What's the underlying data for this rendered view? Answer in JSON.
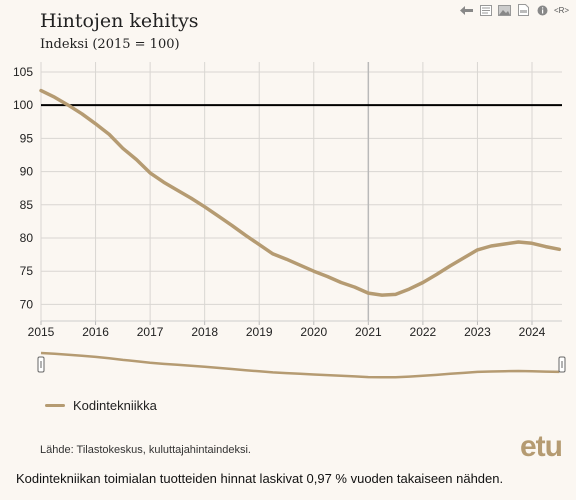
{
  "header": {
    "title": "Hintojen kehitys",
    "subtitle": "Indeksi (2015 = 100)"
  },
  "toolbar": {
    "icons": [
      "arrow-left-icon",
      "document-icon",
      "image-icon",
      "pdf-icon",
      "info-icon"
    ],
    "r_label": "<R>"
  },
  "legend": {
    "label": "Kodintekniikka",
    "color": "#b59b72"
  },
  "source": "Lähde: Tilastokeskus, kuluttajahintaindeksi.",
  "logo": "etu",
  "caption": "Kodintekniikan toimialan tuotteiden hinnat laskivat 0,97 % vuoden takaiseen nähden.",
  "colors": {
    "background": "#fbf7f2",
    "line": "#b59b72",
    "baseline": "#000000",
    "grid": "#d9d6d2"
  },
  "chart_data": {
    "type": "line",
    "title": "Hintojen kehitys",
    "subtitle": "Indeksi (2015 = 100)",
    "xlabel": "",
    "ylabel": "",
    "xlim": [
      2015,
      2024.55
    ],
    "ylim": [
      67.5,
      106.5
    ],
    "x_ticks": [
      "2015",
      "2016",
      "2017",
      "2018",
      "2019",
      "2020",
      "2021",
      "2022",
      "2023",
      "2024"
    ],
    "y_ticks": [
      70,
      75,
      80,
      85,
      90,
      95,
      100,
      105
    ],
    "reference_line": 100,
    "highlight_x": 2021,
    "grid": true,
    "legend_position": "bottom-left",
    "navigator": true,
    "series": [
      {
        "name": "Kodintekniikka",
        "x": [
          2015.0,
          2015.25,
          2015.5,
          2015.75,
          2016.0,
          2016.25,
          2016.5,
          2016.75,
          2017.0,
          2017.25,
          2017.5,
          2017.75,
          2018.0,
          2018.25,
          2018.5,
          2018.75,
          2019.0,
          2019.25,
          2019.5,
          2019.75,
          2020.0,
          2020.25,
          2020.5,
          2020.75,
          2021.0,
          2021.25,
          2021.5,
          2021.75,
          2022.0,
          2022.25,
          2022.5,
          2022.75,
          2023.0,
          2023.25,
          2023.5,
          2023.75,
          2024.0,
          2024.25,
          2024.5
        ],
        "y": [
          102.2,
          101.2,
          100.0,
          98.7,
          97.2,
          95.6,
          93.5,
          91.8,
          89.8,
          88.4,
          87.2,
          86.0,
          84.7,
          83.3,
          81.9,
          80.4,
          79.0,
          77.6,
          76.8,
          75.9,
          75.0,
          74.2,
          73.3,
          72.6,
          71.7,
          71.4,
          71.5,
          72.3,
          73.3,
          74.5,
          75.8,
          77.0,
          78.2,
          78.8,
          79.1,
          79.4,
          79.2,
          78.7,
          78.3
        ]
      }
    ]
  }
}
